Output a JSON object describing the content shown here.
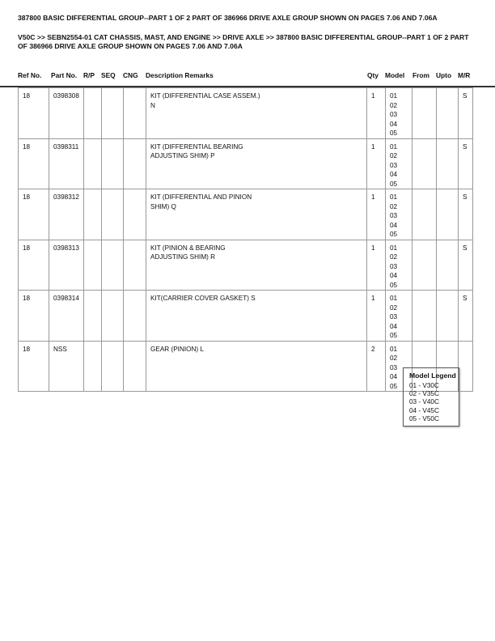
{
  "title": "387800 BASIC DIFFERENTIAL GROUP--PART 1 OF 2 PART OF 386966 DRIVE AXLE GROUP SHOWN ON PAGES 7.06 AND 7.06A",
  "breadcrumb": "V50C >> SEBN2554-01 CAT CHASSIS, MAST, AND ENGINE >> DRIVE AXLE >> 387800 BASIC DIFFERENTIAL GROUP--PART 1 OF 2 PART OF 386966 DRIVE AXLE GROUP SHOWN ON PAGES 7.06 AND 7.06A",
  "columns": [
    "Ref No.",
    "Part No.",
    "R/P",
    "SEQ",
    "CNG",
    "Description Remarks",
    "Qty",
    "Model",
    "From",
    "Upto",
    "M/R"
  ],
  "rows": [
    {
      "ref": "18",
      "part": "0398308",
      "rp": "",
      "seq": "",
      "cng": "",
      "desc": "KIT (DIFFERENTIAL CASE ASSEM.)\nN",
      "qty": "1",
      "model": "01\n02\n03\n04\n05",
      "from": "",
      "upto": "",
      "mr": "S"
    },
    {
      "ref": "18",
      "part": "0398311",
      "rp": "",
      "seq": "",
      "cng": "",
      "desc": "KIT (DIFFERENTIAL BEARING\nADJUSTING SHIM) P",
      "qty": "1",
      "model": "01\n02\n03\n04\n05",
      "from": "",
      "upto": "",
      "mr": "S"
    },
    {
      "ref": "18",
      "part": "0398312",
      "rp": "",
      "seq": "",
      "cng": "",
      "desc": "KIT (DIFFERENTIAL AND PINION\nSHIM) Q",
      "qty": "1",
      "model": "01\n02\n03\n04\n05",
      "from": "",
      "upto": "",
      "mr": "S"
    },
    {
      "ref": "18",
      "part": "0398313",
      "rp": "",
      "seq": "",
      "cng": "",
      "desc": "KIT (PINION & BEARING\nADJUSTING SHIM) R",
      "qty": "1",
      "model": "01\n02\n03\n04\n05",
      "from": "",
      "upto": "",
      "mr": "S"
    },
    {
      "ref": "18",
      "part": "0398314",
      "rp": "",
      "seq": "",
      "cng": "",
      "desc": "KIT(CARRIER COVER GASKET) S",
      "qty": "1",
      "model": "01\n02\n03\n04\n05",
      "from": "",
      "upto": "",
      "mr": "S"
    },
    {
      "ref": "18",
      "part": "NSS",
      "rp": "",
      "seq": "",
      "cng": "",
      "desc": "GEAR (PINION) L",
      "qty": "2",
      "model": "01\n02\n03\n04\n05",
      "from": "",
      "upto": "",
      "mr": ""
    }
  ],
  "legend": {
    "title": "Model Legend",
    "items": [
      "01 - V30C",
      "02 - V35C",
      "03 - V40C",
      "04 - V45C",
      "05 - V50C"
    ]
  }
}
